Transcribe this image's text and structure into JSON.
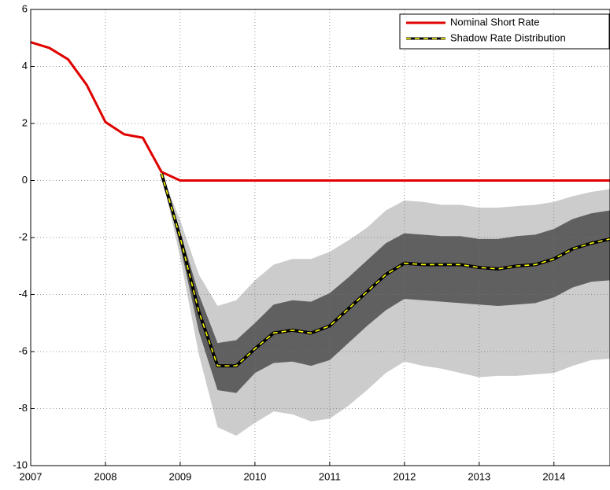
{
  "chart_data": {
    "type": "line",
    "x": [
      2007,
      2007.25,
      2007.5,
      2007.75,
      2008,
      2008.25,
      2008.5,
      2008.75,
      2009,
      2009.25,
      2009.5,
      2009.75,
      2010,
      2010.25,
      2010.5,
      2010.75,
      2011,
      2011.25,
      2011.5,
      2011.75,
      2012,
      2012.25,
      2012.5,
      2012.75,
      2013,
      2013.25,
      2013.5,
      2013.75,
      2014,
      2014.25,
      2014.5,
      2014.75
    ],
    "xlim": [
      2007,
      2014.75
    ],
    "xticks": [
      2007,
      2008,
      2009,
      2010,
      2011,
      2012,
      2013,
      2014
    ],
    "ylim": [
      -10,
      6
    ],
    "yticks": [
      -10,
      -8,
      -6,
      -4,
      -2,
      0,
      2,
      4,
      6
    ],
    "grid": true,
    "legend": "upper right",
    "bands": [
      {
        "color": "#cccccc",
        "upper": [
          null,
          null,
          null,
          null,
          null,
          null,
          null,
          0.25,
          -1.4,
          -3.3,
          -4.4,
          -4.2,
          -3.5,
          -2.95,
          -2.75,
          -2.75,
          -2.5,
          -2.1,
          -1.65,
          -1.05,
          -0.7,
          -0.75,
          -0.85,
          -0.85,
          -0.95,
          -0.95,
          -0.9,
          -0.85,
          -0.75,
          -0.55,
          -0.4,
          -0.3
        ],
        "lower": [
          null,
          null,
          null,
          null,
          null,
          null,
          null,
          0.25,
          -2.7,
          -6.1,
          -8.65,
          -8.95,
          -8.5,
          -8.1,
          -8.2,
          -8.45,
          -8.35,
          -7.9,
          -7.35,
          -6.75,
          -6.35,
          -6.5,
          -6.6,
          -6.75,
          -6.9,
          -6.85,
          -6.85,
          -6.8,
          -6.75,
          -6.5,
          -6.3,
          -6.25
        ]
      },
      {
        "color": "#606060",
        "upper": [
          null,
          null,
          null,
          null,
          null,
          null,
          null,
          0.25,
          -1.8,
          -4.0,
          -5.7,
          -5.6,
          -5.0,
          -4.35,
          -4.2,
          -4.25,
          -3.95,
          -3.4,
          -2.8,
          -2.2,
          -1.85,
          -1.9,
          -1.95,
          -1.95,
          -2.05,
          -2.05,
          -1.95,
          -1.9,
          -1.7,
          -1.35,
          -1.15,
          -1.05
        ],
        "lower": [
          null,
          null,
          null,
          null,
          null,
          null,
          null,
          0.25,
          -2.3,
          -5.3,
          -7.35,
          -7.45,
          -6.75,
          -6.4,
          -6.35,
          -6.5,
          -6.3,
          -5.7,
          -5.1,
          -4.55,
          -4.15,
          -4.2,
          -4.25,
          -4.3,
          -4.35,
          -4.4,
          -4.35,
          -4.3,
          -4.1,
          -3.75,
          -3.55,
          -3.5
        ]
      }
    ],
    "series": [
      {
        "name": "Nominal Short Rate",
        "color": "#e00000",
        "values": [
          4.85,
          4.65,
          4.25,
          3.35,
          2.05,
          1.62,
          1.5,
          0.3,
          0,
          0,
          0,
          0,
          0,
          0,
          0,
          0,
          0,
          0,
          0,
          0,
          0,
          0,
          0,
          0,
          0,
          0,
          0,
          0,
          0,
          0,
          0,
          0
        ]
      },
      {
        "name": "Shadow Rate Distribution",
        "color": "#000000",
        "dash_color": "#ffff00",
        "values": [
          null,
          null,
          null,
          null,
          null,
          null,
          null,
          0.25,
          -2.0,
          -4.6,
          -6.5,
          -6.5,
          -5.9,
          -5.35,
          -5.25,
          -5.35,
          -5.1,
          -4.5,
          -3.9,
          -3.3,
          -2.9,
          -2.95,
          -2.95,
          -2.95,
          -3.05,
          -3.1,
          -3.0,
          -2.95,
          -2.75,
          -2.4,
          -2.2,
          -2.05
        ]
      }
    ]
  }
}
